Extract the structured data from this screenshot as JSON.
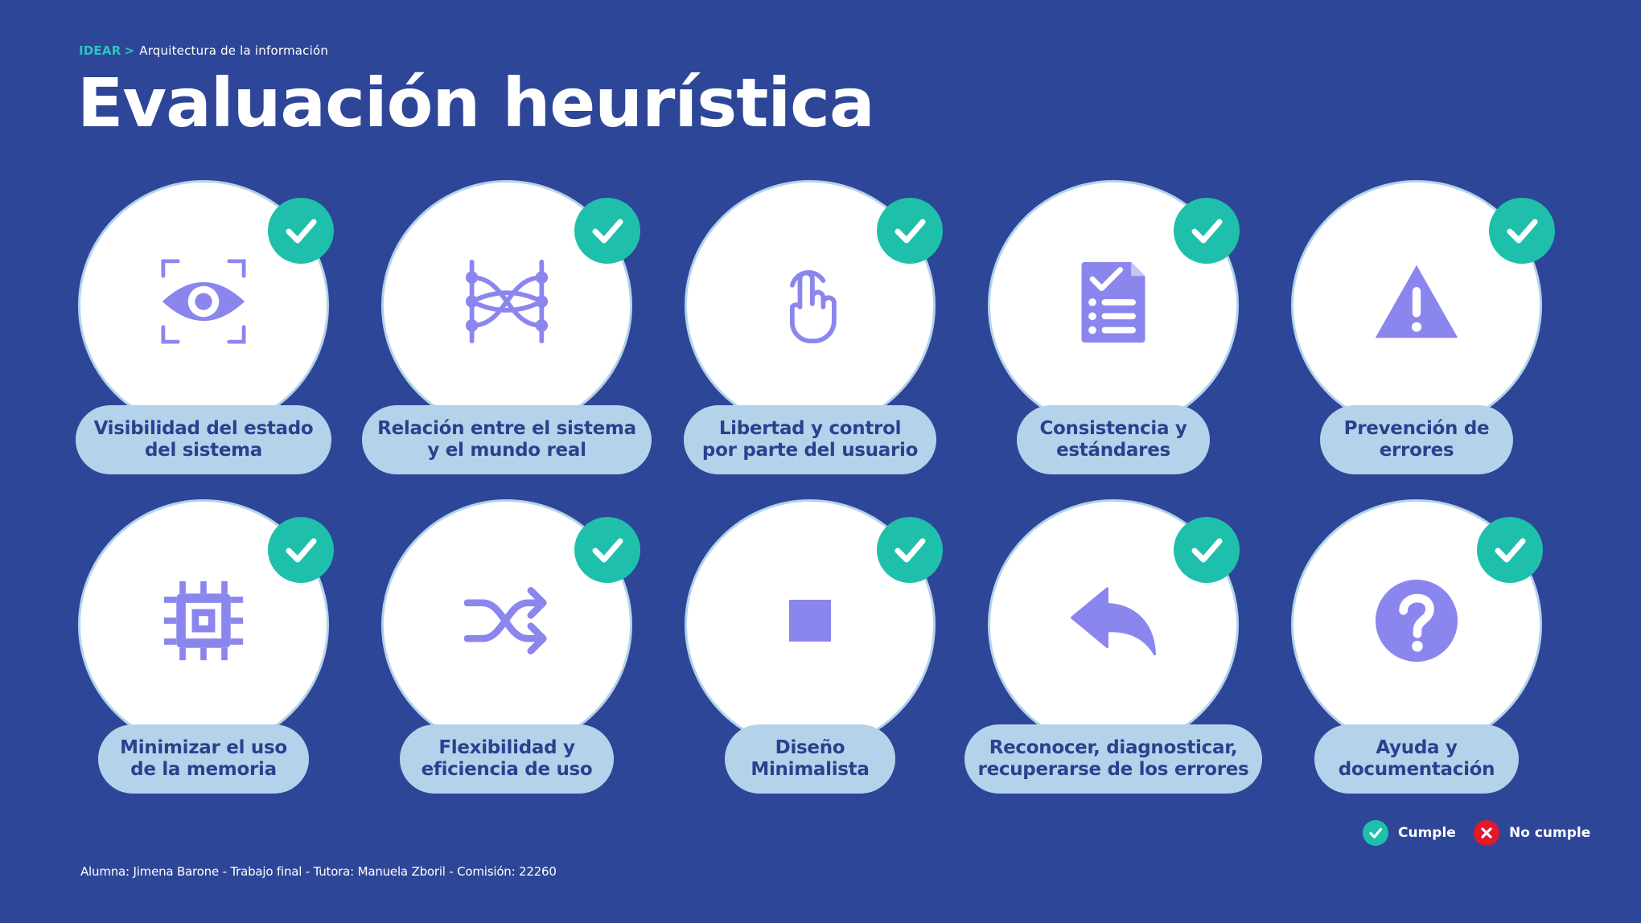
{
  "breadcrumb": {
    "root": "IDEAR",
    "separator": ">",
    "current": "Arquitectura de la información"
  },
  "title": "Evaluación heurística",
  "colors": {
    "background": "#2e4697",
    "accent": "#2ec4c0",
    "check": "#1ec0ab",
    "fail": "#e0192b",
    "icon": "#8b86ee",
    "label_bg": "#b4d3ea",
    "label_text": "#2e3f8f"
  },
  "heuristics": [
    {
      "line1": "Visibilidad del estado",
      "line2": "del sistema",
      "icon": "eye-scan-icon",
      "status": "Cumple"
    },
    {
      "line1": "Relación entre el sistema",
      "line2": "y el mundo real",
      "icon": "dna-network-icon",
      "status": "Cumple"
    },
    {
      "line1": "Libertad y control",
      "line2": "por parte del usuario",
      "icon": "touch-pointer-icon",
      "status": "Cumple"
    },
    {
      "line1": "Consistencia y",
      "line2": "estándares",
      "icon": "checklist-document-icon",
      "status": "Cumple"
    },
    {
      "line1": "Prevención de",
      "line2": "errores",
      "icon": "warning-triangle-icon",
      "status": "Cumple"
    },
    {
      "line1": "Minimizar el uso",
      "line2": "de la memoria",
      "icon": "memory-chip-icon",
      "status": "Cumple"
    },
    {
      "line1": "Flexibilidad y",
      "line2": "eficiencia de uso",
      "icon": "shuffle-icon",
      "status": "Cumple"
    },
    {
      "line1": "Diseño",
      "line2": "Minimalista",
      "icon": "square-icon",
      "status": "Cumple"
    },
    {
      "line1": "Reconocer, diagnosticar,",
      "line2": "recuperarse de los errores",
      "icon": "reply-arrow-icon",
      "status": "Cumple"
    },
    {
      "line1": "Ayuda y",
      "line2": "documentación",
      "icon": "help-circle-icon",
      "status": "Cumple"
    }
  ],
  "legend": {
    "pass": "Cumple",
    "fail": "No cumple"
  },
  "footer": "Alumna: Jimena Barone - Trabajo final - Tutora: Manuela Zboril - Comisión: 22260"
}
